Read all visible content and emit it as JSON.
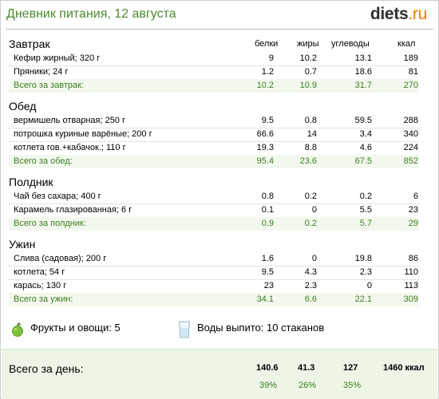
{
  "header": {
    "title": "Дневник питания, 12 августа",
    "logo_main": "diets",
    "logo_tld": ".ru"
  },
  "columns": {
    "protein": "белки",
    "fat": "жиры",
    "carbs": "углеводы",
    "kcal": "ккал"
  },
  "meals": [
    {
      "title": "Завтрак",
      "items": [
        {
          "name": "Кефир жирный; 320 г",
          "protein": "9",
          "fat": "10.2",
          "carbs": "13.1",
          "kcal": "189"
        },
        {
          "name": "Пряники; 24 г",
          "protein": "1.2",
          "fat": "0.7",
          "carbs": "18.6",
          "kcal": "81"
        }
      ],
      "total": {
        "label": "Всего за завтрак:",
        "protein": "10.2",
        "fat": "10.9",
        "carbs": "31.7",
        "kcal": "270"
      }
    },
    {
      "title": "Обед",
      "items": [
        {
          "name": "вермишель отварная; 250 г",
          "protein": "9.5",
          "fat": "0.8",
          "carbs": "59.5",
          "kcal": "288"
        },
        {
          "name": "потрошка куриные варёные; 200 г",
          "protein": "66.6",
          "fat": "14",
          "carbs": "3.4",
          "kcal": "340"
        },
        {
          "name": "котлета гов.+кабачок.; 110 г",
          "protein": "19.3",
          "fat": "8.8",
          "carbs": "4.6",
          "kcal": "224"
        }
      ],
      "total": {
        "label": "Всего за обед:",
        "protein": "95.4",
        "fat": "23.6",
        "carbs": "67.5",
        "kcal": "852"
      }
    },
    {
      "title": "Полдник",
      "items": [
        {
          "name": "Чай без сахара; 400 г",
          "protein": "0.8",
          "fat": "0.2",
          "carbs": "0.2",
          "kcal": "6"
        },
        {
          "name": "Карамель глазированная; 6 г",
          "protein": "0.1",
          "fat": "0",
          "carbs": "5.5",
          "kcal": "23"
        }
      ],
      "total": {
        "label": "Всего за полдник:",
        "protein": "0.9",
        "fat": "0.2",
        "carbs": "5.7",
        "kcal": "29"
      }
    },
    {
      "title": "Ужин",
      "items": [
        {
          "name": "Слива (садовая); 200 г",
          "protein": "1.6",
          "fat": "0",
          "carbs": "19.8",
          "kcal": "86"
        },
        {
          "name": "котлета; 54 г",
          "protein": "9.5",
          "fat": "4.3",
          "carbs": "2.3",
          "kcal": "110"
        },
        {
          "name": "карась; 130 г",
          "protein": "23",
          "fat": "2.3",
          "carbs": "0",
          "kcal": "113"
        }
      ],
      "total": {
        "label": "Всего за ужин:",
        "protein": "34.1",
        "fat": "6.6",
        "carbs": "22.1",
        "kcal": "309"
      }
    }
  ],
  "extras": {
    "fruits_label": "Фрукты и овощи: 5",
    "water_label": "Воды выпито: 10 стаканов",
    "fruits_icon": "apple-icon",
    "water_icon": "water-glass-icon"
  },
  "day_total": {
    "label": "Всего за день:",
    "protein": "140.6",
    "fat": "41.3",
    "carbs": "127",
    "kcal": "1460 ккал",
    "protein_pct": "39%",
    "fat_pct": "26%",
    "carbs_pct": "35%"
  },
  "colors": {
    "accent_green": "#4c8a2e",
    "total_text": "#3b7d21",
    "total_bg": "#f3f8ee",
    "logo_tld": "#f07a00"
  }
}
